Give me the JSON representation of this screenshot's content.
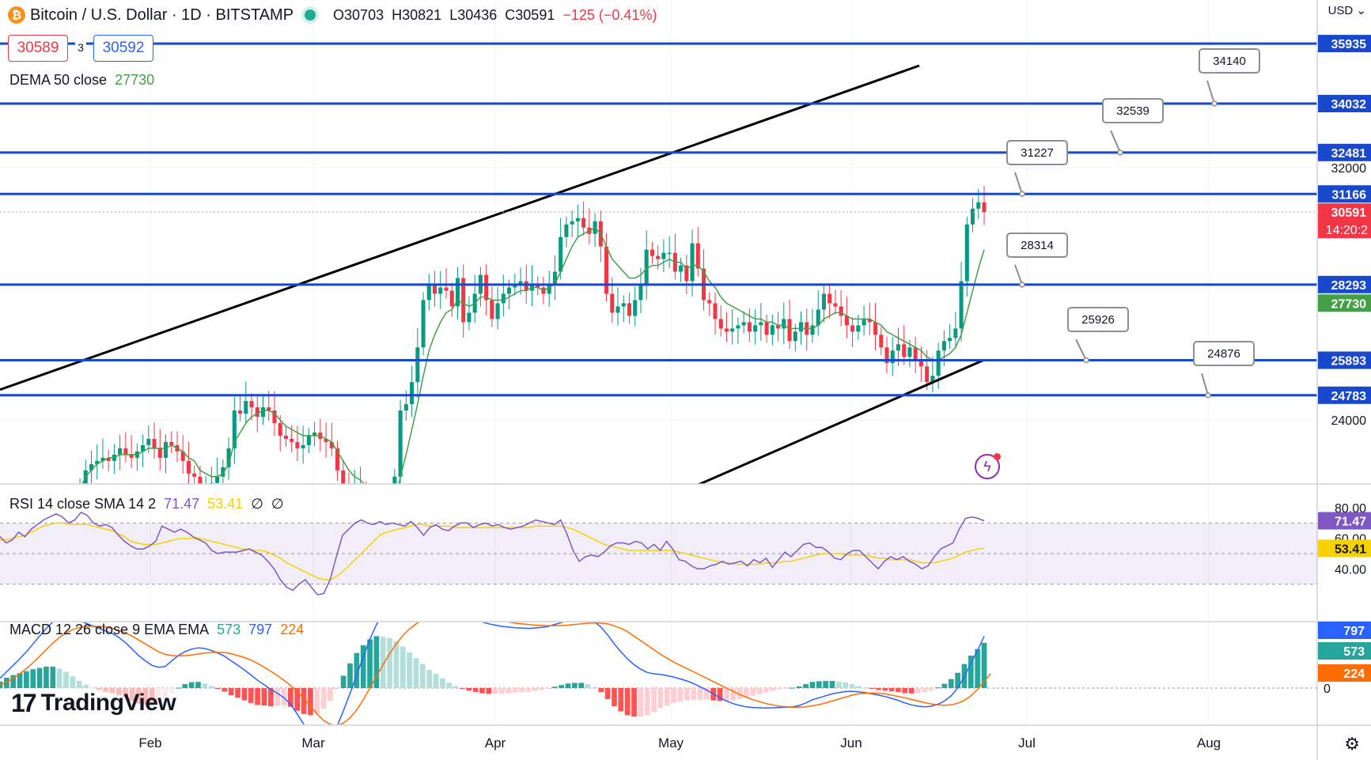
{
  "header": {
    "symbol_icon": "bitcoin-icon",
    "title": "Bitcoin / U.S. Dollar · 1D · BITSTAMP",
    "ohlc": {
      "o": "O30703",
      "h": "H30821",
      "l": "L30436",
      "c": "C30591",
      "chg": "−125 (−0.41%)"
    },
    "sell_price": "30589",
    "spread": "3",
    "buy_price": "30592",
    "currency": "USD"
  },
  "indicators": {
    "dema": {
      "label": "DEMA 50 close",
      "value": "27730"
    },
    "rsi": {
      "label": "RSI 14 close SMA 14 2",
      "value": "71.47",
      "sma": "53.41",
      "extra1": "∅",
      "extra2": "∅"
    },
    "macd": {
      "label": "MACD 12 26 close 9 EMA EMA",
      "hist": "573",
      "macd": "797",
      "signal": "224"
    }
  },
  "watermark": "TradingView",
  "chart_data": {
    "type": "candlestick",
    "x_axis_ticks": [
      "Feb",
      "Mar",
      "Apr",
      "May",
      "Jun",
      "Jul",
      "Aug"
    ],
    "price_axis_ticks": [
      32000,
      24000
    ],
    "ylim": [
      20000,
      36500
    ],
    "last_price": {
      "value": "30591",
      "countdown": "14:20:2"
    },
    "dema_last": "27730",
    "horizontal_levels": [
      {
        "value": 35935,
        "label": "35935"
      },
      {
        "value": 34032,
        "label": "34032"
      },
      {
        "value": 32481,
        "label": "32481"
      },
      {
        "value": 31166,
        "label": "31166"
      },
      {
        "value": 28293,
        "label": "28293"
      },
      {
        "value": 25893,
        "label": "25893"
      },
      {
        "value": 24783,
        "label": "24783"
      }
    ],
    "callouts": [
      "34140",
      "32539",
      "31227",
      "28314",
      "25926",
      "24876"
    ],
    "channel": {
      "upper": [
        [
          0,
          24960
        ],
        [
          1162,
          35235
        ]
      ],
      "lower": [
        [
          705,
          20000
        ],
        [
          1243,
          25893
        ]
      ]
    },
    "closes": [
      21900,
      22400,
      22600,
      22700,
      22800,
      22700,
      22900,
      23100,
      22900,
      22800,
      23000,
      23200,
      23400,
      23100,
      22800,
      23300,
      23200,
      23000,
      22700,
      22300,
      22200,
      21600,
      21800,
      22000,
      22200,
      22500,
      23100,
      24300,
      24200,
      24600,
      24400,
      24100,
      24400,
      24300,
      23900,
      23500,
      23400,
      23300,
      23100,
      23200,
      23500,
      23600,
      23400,
      23300,
      23100,
      22400,
      21900,
      21700,
      21900,
      21800,
      21400,
      20600,
      20100,
      20400,
      21000,
      22200,
      24300,
      24500,
      25200,
      26300,
      27800,
      28300,
      28000,
      28200,
      28100,
      27600,
      28500,
      27100,
      27400,
      28000,
      28600,
      27800,
      27200,
      27700,
      28000,
      28200,
      28300,
      28400,
      28100,
      28300,
      28200,
      28000,
      28300,
      28700,
      29800,
      30200,
      30300,
      30400,
      30100,
      29900,
      30300,
      29500,
      28000,
      27400,
      27600,
      27700,
      27300,
      27800,
      28300,
      29400,
      29200,
      29100,
      29300,
      29300,
      28700,
      28900,
      28400,
      29600,
      28800,
      27800,
      27700,
      27200,
      26900,
      26800,
      26900,
      27000,
      27100,
      26800,
      27000,
      27100,
      26700,
      27000,
      26900,
      27200,
      26500,
      26800,
      27100,
      26700,
      27000,
      27500,
      28000,
      27700,
      27600,
      27300,
      27000,
      26800,
      27000,
      27200,
      27100,
      26700,
      26300,
      25800,
      26200,
      26400,
      26000,
      26300,
      25900,
      25700,
      25200,
      25400,
      26200,
      26500,
      26600,
      26900,
      28400,
      30200,
      30700,
      30900,
      30591
    ],
    "dema": [
      21800,
      22200,
      22400,
      22600,
      22700,
      22800,
      22800,
      22900,
      22900,
      22900,
      22900,
      23000,
      23100,
      23100,
      23100,
      23100,
      23200,
      23100,
      23000,
      22800,
      22700,
      22400,
      22300,
      22200,
      22200,
      22300,
      22600,
      23300,
      23600,
      23900,
      24100,
      24200,
      24300,
      24300,
      24200,
      24000,
      23800,
      23700,
      23600,
      23500,
      23500,
      23500,
      23500,
      23400,
      23300,
      23000,
      22700,
      22400,
      22200,
      22100,
      21900,
      21500,
      21100,
      20900,
      20900,
      21300,
      22200,
      22900,
      23700,
      24500,
      25400,
      26200,
      26700,
      27100,
      27400,
      27500,
      27800,
      27700,
      27600,
      27700,
      27900,
      27900,
      27800,
      27800,
      27800,
      27900,
      28000,
      28100,
      28100,
      28200,
      28200,
      28100,
      28200,
      28300,
      28700,
      29100,
      29500,
      29800,
      29900,
      30000,
      30100,
      29900,
      29500,
      29100,
      28900,
      28700,
      28500,
      28500,
      28600,
      28800,
      28900,
      28900,
      29000,
      29100,
      29000,
      29000,
      28800,
      28900,
      28900,
      28700,
      28400,
      28200,
      27900,
      27700,
      27600,
      27500,
      27400,
      27300,
      27200,
      27200,
      27100,
      27100,
      27000,
      27000,
      26900,
      26900,
      26900,
      26900,
      26900,
      27000,
      27200,
      27300,
      27400,
      27400,
      27300,
      27200,
      27200,
      27200,
      27200,
      27100,
      27000,
      26800,
      26700,
      26600,
      26500,
      26400,
      26300,
      26200,
      26000,
      25900,
      25900,
      26000,
      26100,
      26300,
      26700,
      27400,
      28100,
      28800,
      29400
    ],
    "rsi": [
      61,
      57,
      59,
      64,
      61,
      66,
      69,
      72,
      74,
      76,
      74,
      70,
      72,
      77,
      75,
      70,
      68,
      69,
      67,
      62,
      58,
      55,
      53,
      53,
      55,
      58,
      68,
      66,
      64,
      66,
      64,
      61,
      59,
      57,
      52,
      50,
      51,
      51,
      51,
      52,
      53,
      51,
      49,
      45,
      40,
      33,
      28,
      26,
      30,
      33,
      28,
      23,
      24,
      33,
      48,
      62,
      66,
      70,
      72,
      70,
      69,
      71,
      69,
      70,
      69,
      68,
      71,
      67,
      62,
      67,
      69,
      66,
      65,
      68,
      70,
      70,
      67,
      69,
      70,
      68,
      69,
      67,
      66,
      67,
      68,
      70,
      72,
      71,
      70,
      69,
      72,
      63,
      52,
      45,
      48,
      49,
      48,
      51,
      55,
      57,
      57,
      56,
      58,
      57,
      53,
      56,
      52,
      58,
      53,
      46,
      45,
      42,
      40,
      40,
      42,
      43,
      45,
      43,
      44,
      45,
      42,
      46,
      44,
      47,
      41,
      46,
      51,
      48,
      52,
      56,
      57,
      54,
      54,
      51,
      47,
      46,
      50,
      52,
      52,
      48,
      44,
      40,
      45,
      48,
      46,
      48,
      45,
      43,
      40,
      42,
      48,
      53,
      55,
      57,
      66,
      73,
      74,
      73,
      71.47
    ],
    "rsi_sma": [
      59,
      59,
      60,
      61,
      62,
      64,
      66,
      68,
      69,
      70,
      70,
      69,
      69,
      69,
      69,
      68,
      67,
      66,
      65,
      63,
      61,
      58,
      57,
      56,
      56,
      56,
      57,
      58,
      59,
      60,
      60,
      60,
      60,
      59,
      58,
      57,
      56,
      55,
      54,
      53,
      53,
      52,
      52,
      51,
      49,
      47,
      44,
      42,
      40,
      38,
      36,
      34,
      33,
      33,
      35,
      38,
      42,
      46,
      50,
      54,
      58,
      62,
      64,
      65,
      66,
      67,
      68,
      69,
      69,
      68,
      68,
      68,
      68,
      67,
      67,
      67,
      67,
      67,
      67,
      67,
      67,
      67,
      67,
      67,
      67,
      67,
      68,
      68,
      68,
      68,
      68,
      67,
      66,
      64,
      62,
      60,
      58,
      56,
      55,
      54,
      53,
      52,
      52,
      52,
      52,
      52,
      52,
      52,
      52,
      51,
      50,
      49,
      48,
      47,
      46,
      45,
      44,
      44,
      43,
      43,
      43,
      43,
      43,
      44,
      44,
      44,
      45,
      45,
      46,
      47,
      48,
      49,
      50,
      50,
      50,
      50,
      49,
      49,
      49,
      49,
      48,
      47,
      47,
      46,
      46,
      46,
      46,
      45,
      44,
      44,
      44,
      45,
      46,
      47,
      49,
      51,
      52,
      53,
      53.41
    ],
    "rsi_axis": [
      80,
      60,
      40
    ],
    "macd_line": [
      150,
      250,
      350,
      450,
      560,
      680,
      800,
      920,
      1020,
      1080,
      1100,
      1080,
      1040,
      1000,
      960,
      920,
      880,
      840,
      780,
      700,
      600,
      500,
      420,
      350,
      320,
      330,
      420,
      500,
      560,
      600,
      620,
      610,
      580,
      540,
      490,
      420,
      350,
      280,
      200,
      120,
      50,
      -20,
      -80,
      -150,
      -250,
      -400,
      -560,
      -700,
      -800,
      -820,
      -760,
      -600,
      -350,
      -80,
      200,
      480,
      750,
      980,
      1150,
      1300,
      1400,
      1450,
      1460,
      1450,
      1420,
      1380,
      1350,
      1300,
      1240,
      1190,
      1140,
      1100,
      1060,
      1020,
      990,
      970,
      950,
      940,
      930,
      925,
      920,
      925,
      935,
      950,
      980,
      1010,
      1040,
      1060,
      1070,
      1060,
      1020,
      940,
      820,
      680,
      560,
      450,
      360,
      290,
      240,
      220,
      210,
      190,
      170,
      140,
      110,
      70,
      20,
      -30,
      -90,
      -150,
      -200,
      -240,
      -270,
      -290,
      -300,
      -305,
      -308,
      -305,
      -300,
      -295,
      -290,
      -270,
      -230,
      -180,
      -150,
      -120,
      -90,
      -70,
      -55,
      -50,
      -60,
      -70,
      -90,
      -110,
      -130,
      -160,
      -190,
      -230,
      -260,
      -280,
      -290,
      -280,
      -250,
      -200,
      -120,
      0,
      180,
      380,
      580,
      797
    ],
    "macd_signal": [
      50,
      90,
      150,
      220,
      300,
      390,
      490,
      590,
      690,
      780,
      850,
      900,
      930,
      950,
      955,
      950,
      940,
      920,
      890,
      850,
      800,
      740,
      680,
      620,
      560,
      520,
      500,
      495,
      500,
      510,
      525,
      540,
      550,
      550,
      545,
      530,
      500,
      470,
      430,
      380,
      320,
      260,
      190,
      120,
      40,
      -50,
      -160,
      -280,
      -400,
      -500,
      -560,
      -580,
      -540,
      -460,
      -340,
      -180,
      0,
      180,
      360,
      530,
      680,
      810,
      910,
      990,
      1050,
      1100,
      1130,
      1150,
      1160,
      1160,
      1150,
      1140,
      1120,
      1100,
      1080,
      1060,
      1040,
      1020,
      1000,
      990,
      980,
      970,
      965,
      960,
      960,
      965,
      970,
      980,
      990,
      1000,
      1005,
      1000,
      990,
      960,
      920,
      870,
      800,
      730,
      660,
      590,
      520,
      460,
      400,
      350,
      300,
      250,
      200,
      150,
      100,
      50,
      0,
      -50,
      -100,
      -140,
      -180,
      -210,
      -240,
      -260,
      -280,
      -290,
      -295,
      -295,
      -290,
      -275,
      -255,
      -230,
      -200,
      -170,
      -140,
      -110,
      -90,
      -80,
      -78,
      -80,
      -90,
      -110,
      -130,
      -150,
      -175,
      -200,
      -225,
      -245,
      -260,
      -265,
      -258,
      -235,
      -190,
      -120,
      -20,
      100,
      224
    ],
    "macd_hist_last": "573",
    "macd_axis": [
      0
    ]
  }
}
